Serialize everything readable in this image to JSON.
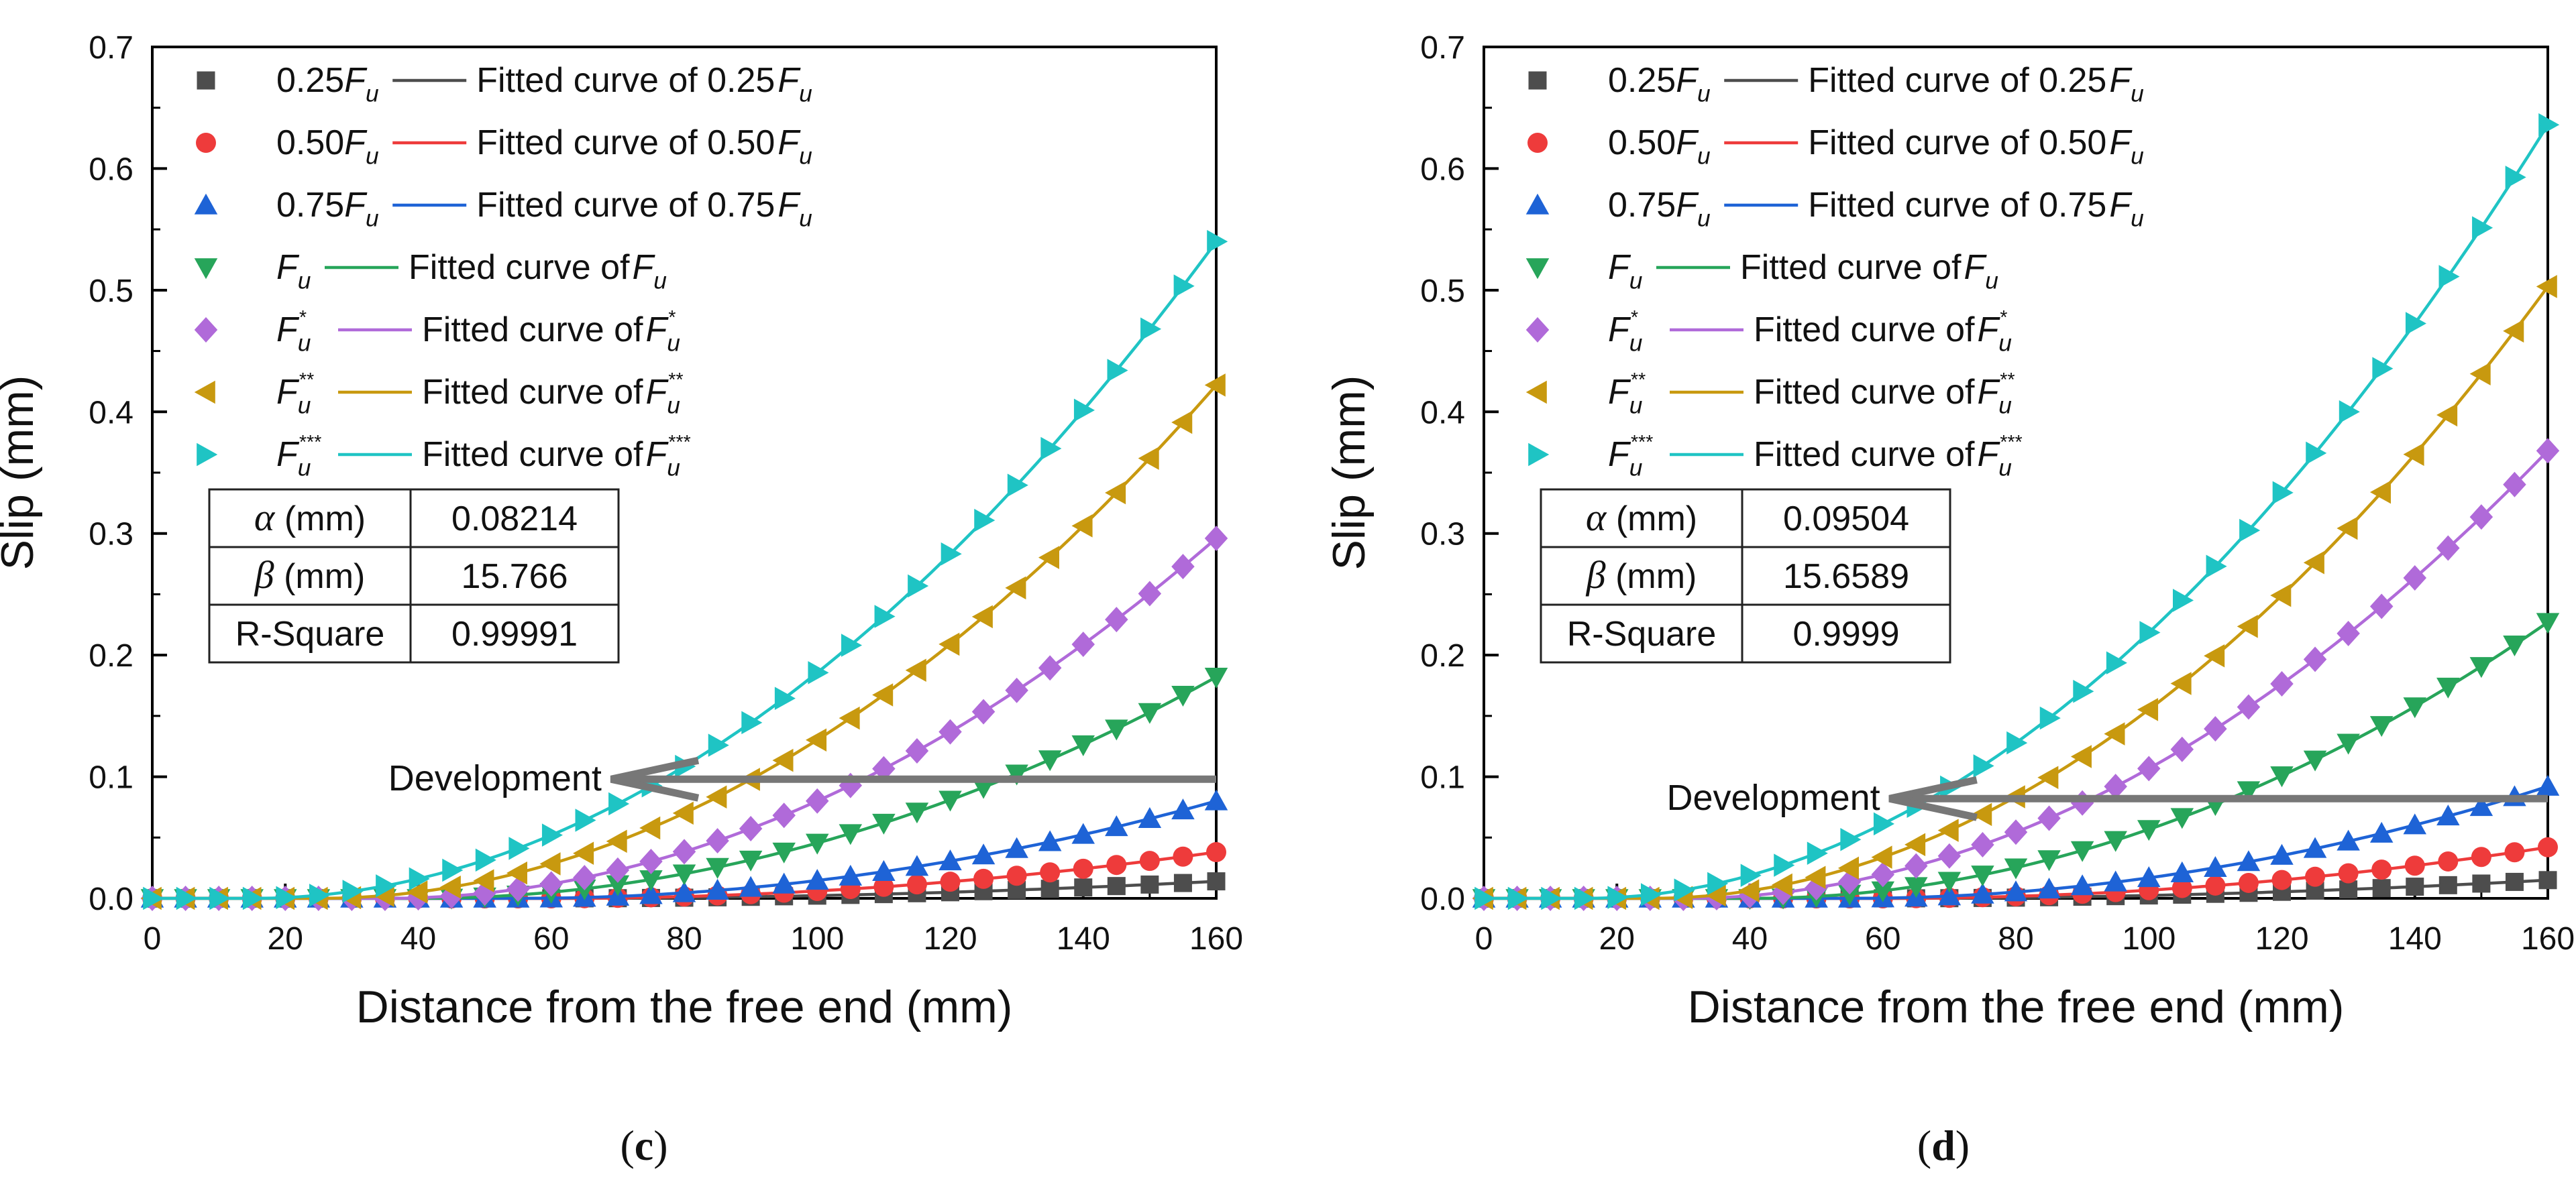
{
  "figure_labels": [
    "(c)",
    "(d)"
  ],
  "chart_data": [
    {
      "type": "line",
      "panel": "(c)",
      "xlabel": "Distance from the free end (mm)",
      "ylabel": "Slip (mm)",
      "xlim": [
        0,
        160
      ],
      "ylim": [
        0,
        0.7
      ],
      "xticks": [
        0,
        20,
        40,
        60,
        80,
        100,
        120,
        140,
        160
      ],
      "yticks": [
        "0.0",
        "0.1",
        "0.2",
        "0.3",
        "0.4",
        "0.5",
        "0.6",
        "0.7"
      ],
      "x": [
        0,
        5,
        10,
        15,
        20,
        25,
        30,
        35,
        40,
        45,
        50,
        55,
        60,
        65,
        70,
        75,
        80,
        85,
        90,
        95,
        100,
        105,
        110,
        115,
        120,
        125,
        130,
        135,
        140,
        145,
        150,
        155,
        160
      ],
      "series": [
        {
          "name": "0.25F_u",
          "legend_base": "0.25",
          "legend_sup": "",
          "fit_label": "Fitted curve of 0.25",
          "marker": "square",
          "color": "#4d4d4d",
          "onset": 60,
          "end": 0.014
        },
        {
          "name": "0.50F_u",
          "legend_base": "0.50",
          "legend_sup": "",
          "fit_label": "Fitted curve of 0.50",
          "marker": "circle",
          "color": "#ee3b3b",
          "onset": 60,
          "end": 0.038
        },
        {
          "name": "0.75F_u",
          "legend_base": "0.75",
          "legend_sup": "",
          "fit_label": "Fitted curve of 0.75",
          "marker": "triangle-up",
          "color": "#1e63d6",
          "onset": 55,
          "end": 0.08
        },
        {
          "name": "F_u",
          "legend_base": "",
          "legend_sup": "",
          "fit_label": "Fitted curve of ",
          "marker": "triangle-down",
          "color": "#27a55a",
          "onset": 40,
          "end": 0.182
        },
        {
          "name": "F_u*",
          "legend_base": "",
          "legend_sup": "*",
          "fit_label": "Fitted curve of ",
          "marker": "diamond",
          "color": "#b06ad9",
          "onset": 35,
          "end": 0.296
        },
        {
          "name": "F_u**",
          "legend_base": "",
          "legend_sup": "**",
          "fit_label": "Fitted curve of ",
          "marker": "triangle-left",
          "color": "#c8990f",
          "onset": 25,
          "end": 0.422
        },
        {
          "name": "F_u***",
          "legend_base": "",
          "legend_sup": "***",
          "fit_label": "Fitted curve of ",
          "marker": "triangle-right",
          "color": "#1fc4c4",
          "onset": 15,
          "end": 0.54
        }
      ],
      "fit_table": {
        "alpha_label": "(mm)",
        "alpha": "0.08214",
        "beta_label": "(mm)",
        "beta": "15.766",
        "r2_label": "R-Square",
        "r2": "0.99991"
      },
      "annotation": {
        "text": "Development",
        "level": 0.098,
        "from_x": 160,
        "to_x": 69
      }
    },
    {
      "type": "line",
      "panel": "(d)",
      "xlabel": "Distance from the free end (mm)",
      "ylabel": "Slip (mm)",
      "xlim": [
        0,
        160
      ],
      "ylim": [
        0,
        0.7
      ],
      "xticks": [
        0,
        20,
        40,
        60,
        80,
        100,
        120,
        140,
        160
      ],
      "yticks": [
        "0.0",
        "0.1",
        "0.2",
        "0.3",
        "0.4",
        "0.5",
        "0.6",
        "0.7"
      ],
      "x": [
        0,
        5,
        10,
        15,
        20,
        25,
        30,
        35,
        40,
        45,
        50,
        55,
        60,
        65,
        70,
        75,
        80,
        85,
        90,
        95,
        100,
        105,
        110,
        115,
        120,
        125,
        130,
        135,
        140,
        145,
        150,
        155,
        160
      ],
      "series": [
        {
          "name": "0.25F_u",
          "legend_base": "0.25",
          "legend_sup": "",
          "fit_label": "Fitted curve of 0.25",
          "marker": "square",
          "color": "#4d4d4d",
          "onset": 60,
          "end": 0.015
        },
        {
          "name": "0.50F_u",
          "legend_base": "0.50",
          "legend_sup": "",
          "fit_label": "Fitted curve of 0.50",
          "marker": "circle",
          "color": "#ee3b3b",
          "onset": 60,
          "end": 0.042
        },
        {
          "name": "0.75F_u",
          "legend_base": "0.75",
          "legend_sup": "",
          "fit_label": "Fitted curve of 0.75",
          "marker": "triangle-up",
          "color": "#1e63d6",
          "onset": 55,
          "end": 0.092
        },
        {
          "name": "F_u",
          "legend_base": "",
          "legend_sup": "",
          "fit_label": "Fitted curve of ",
          "marker": "triangle-down",
          "color": "#27a55a",
          "onset": 40,
          "end": 0.227
        },
        {
          "name": "F_u*",
          "legend_base": "",
          "legend_sup": "*",
          "fit_label": "Fitted curve of ",
          "marker": "diamond",
          "color": "#b06ad9",
          "onset": 30,
          "end": 0.368
        },
        {
          "name": "F_u**",
          "legend_base": "",
          "legend_sup": "**",
          "fit_label": "Fitted curve of ",
          "marker": "triangle-left",
          "color": "#c8990f",
          "onset": 25,
          "end": 0.503
        },
        {
          "name": "F_u***",
          "legend_base": "",
          "legend_sup": "***",
          "fit_label": "Fitted curve of ",
          "marker": "triangle-right",
          "color": "#1fc4c4",
          "onset": 15,
          "end": 0.636
        }
      ],
      "fit_table": {
        "alpha_label": "(mm)",
        "alpha": "0.09504",
        "beta_label": "(mm)",
        "beta": "15.6589",
        "r2_label": "R-Square",
        "r2": "0.9999"
      },
      "annotation": {
        "text": "Development",
        "level": 0.082,
        "from_x": 160,
        "to_x": 61
      }
    }
  ]
}
